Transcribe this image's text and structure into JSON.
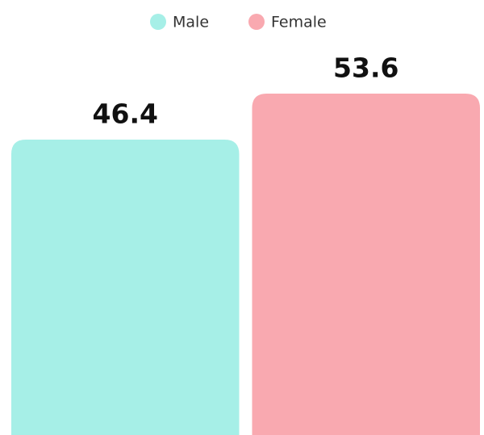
{
  "chart_data": {
    "type": "bar",
    "series": [
      {
        "name": "Male",
        "color": "#a6efe7",
        "values": [
          46.4
        ]
      },
      {
        "name": "Female",
        "color": "#f9a9b0",
        "values": [
          53.6
        ]
      }
    ],
    "legend": "top"
  }
}
